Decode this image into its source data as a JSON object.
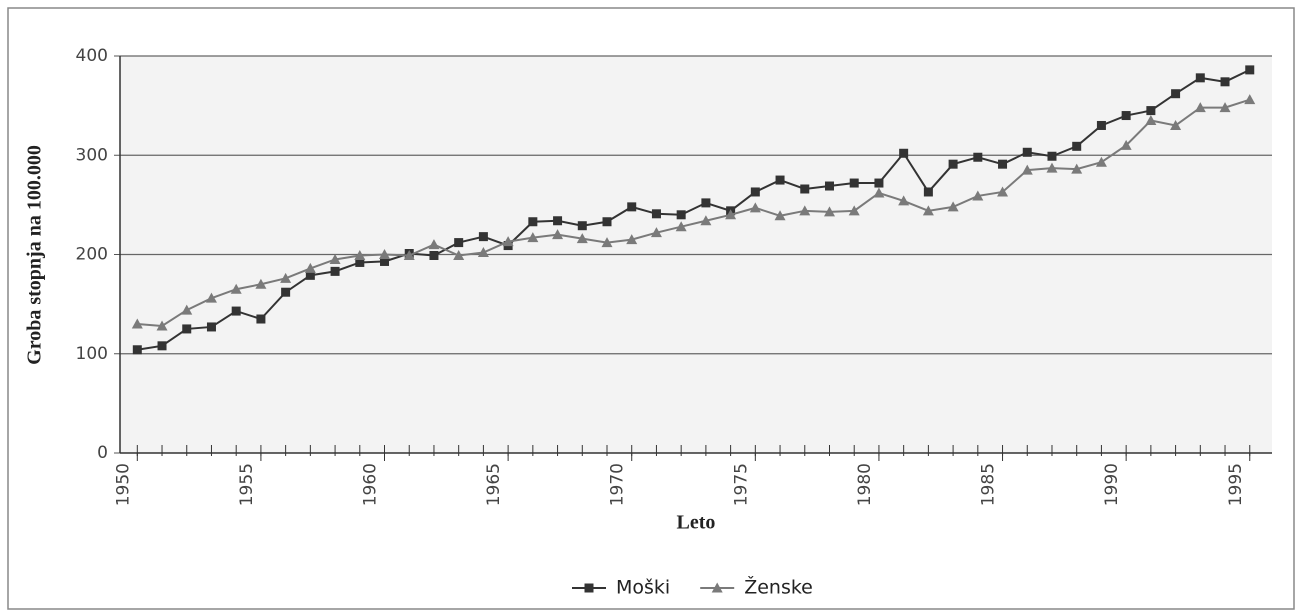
{
  "chart_data": {
    "type": "line",
    "x_label": "Leto",
    "y_label": "Groba stopnja na 100.000",
    "x": [
      1950,
      1951,
      1952,
      1953,
      1954,
      1955,
      1956,
      1957,
      1958,
      1959,
      1960,
      1961,
      1962,
      1963,
      1964,
      1965,
      1966,
      1967,
      1968,
      1969,
      1970,
      1971,
      1972,
      1973,
      1974,
      1975,
      1976,
      1977,
      1978,
      1979,
      1980,
      1981,
      1982,
      1983,
      1984,
      1985,
      1986,
      1987,
      1988,
      1989,
      1990,
      1991,
      1992,
      1993,
      1994,
      1995
    ],
    "series": [
      {
        "name": "Moški",
        "color": "#333333",
        "marker": "square",
        "values": [
          104,
          108,
          125,
          127,
          143,
          135,
          162,
          179,
          183,
          192,
          193,
          201,
          199,
          212,
          218,
          209,
          233,
          234,
          229,
          233,
          248,
          241,
          240,
          252,
          244,
          263,
          275,
          266,
          269,
          272,
          272,
          302,
          263,
          291,
          298,
          291,
          303,
          299,
          309,
          330,
          340,
          345,
          362,
          378,
          374,
          386
        ]
      },
      {
        "name": "Ženske",
        "color": "#7a7a7a",
        "marker": "triangle",
        "values": [
          130,
          128,
          144,
          156,
          165,
          170,
          176,
          186,
          195,
          199,
          200,
          199,
          210,
          199,
          202,
          213,
          217,
          220,
          216,
          212,
          215,
          222,
          228,
          234,
          240,
          247,
          239,
          244,
          243,
          244,
          262,
          254,
          244,
          248,
          259,
          263,
          285,
          287,
          286,
          293,
          310,
          335,
          330,
          348,
          348,
          356
        ]
      }
    ],
    "xlim": [
      1949.3,
      1995.9
    ],
    "xticks": [
      1950,
      1955,
      1960,
      1965,
      1970,
      1975,
      1980,
      1985,
      1990,
      1995
    ],
    "ylim": [
      0,
      400
    ],
    "yticks": [
      0,
      100,
      200,
      300,
      400
    ],
    "grid": true,
    "legend": "bottom"
  }
}
